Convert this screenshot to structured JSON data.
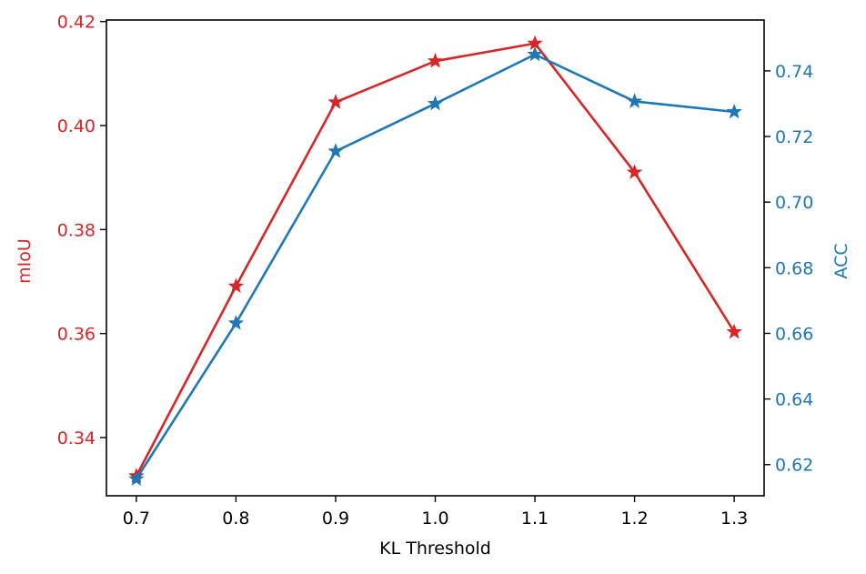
{
  "chart_data": {
    "type": "line",
    "xlabel": "KL Threshold",
    "x": [
      0.7,
      0.8,
      0.9,
      1.0,
      1.1,
      1.2,
      1.3
    ],
    "xticks": [
      "0.7",
      "0.8",
      "0.9",
      "1.0",
      "1.1",
      "1.2",
      "1.3"
    ],
    "xlim": [
      0.67,
      1.33
    ],
    "grid": false,
    "legend": "none",
    "axes": {
      "left": {
        "label": "mIoU",
        "color": "#d62728",
        "ylim": [
          0.3288,
          0.4203
        ],
        "ticks": [
          "0.34",
          "0.36",
          "0.38",
          "0.40",
          "0.42"
        ],
        "tick_values": [
          0.34,
          0.36,
          0.38,
          0.4,
          0.42
        ]
      },
      "right": {
        "label": "ACC",
        "color": "#1f77b4",
        "ylim": [
          0.6105,
          0.7555
        ],
        "ticks": [
          "0.62",
          "0.64",
          "0.66",
          "0.68",
          "0.70",
          "0.72",
          "0.74"
        ],
        "tick_values": [
          0.62,
          0.64,
          0.66,
          0.68,
          0.7,
          0.72,
          0.74
        ]
      }
    },
    "series": [
      {
        "axis": "left",
        "color": "#d62728",
        "marker": "star",
        "values": [
          0.3326,
          0.3691,
          0.4045,
          0.4124,
          0.4158,
          0.391,
          0.3603
        ]
      },
      {
        "axis": "right",
        "color": "#1f77b4",
        "marker": "star",
        "values": [
          0.6156,
          0.6631,
          0.7155,
          0.73,
          0.745,
          0.7307,
          0.7275
        ]
      }
    ]
  }
}
